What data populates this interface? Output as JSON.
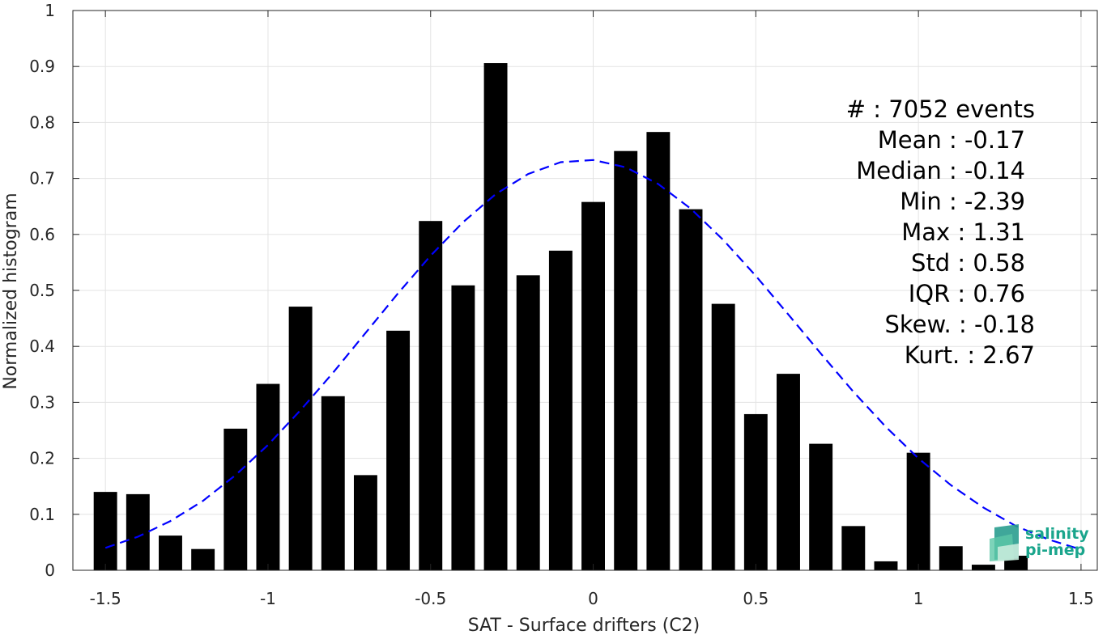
{
  "chart_data": {
    "type": "bar",
    "xlabel": "SAT - Surface drifters (C2)",
    "ylabel": "Normalized histogram",
    "xlim": [
      -1.6,
      1.55
    ],
    "ylim": [
      0,
      1
    ],
    "grid": true,
    "x_ticks": [
      "-1.5",
      "-1",
      "-0.5",
      "0",
      "0.5",
      "1",
      "1.5"
    ],
    "y_ticks": [
      "0",
      "0.1",
      "0.2",
      "0.3",
      "0.4",
      "0.5",
      "0.6",
      "0.7",
      "0.8",
      "0.9",
      "1"
    ],
    "bar_color": "#000000",
    "bin_width": 0.1,
    "x": [
      -1.5,
      -1.4,
      -1.3,
      -1.2,
      -1.1,
      -1.0,
      -0.9,
      -0.8,
      -0.7,
      -0.6,
      -0.5,
      -0.4,
      -0.3,
      -0.2,
      -0.1,
      0.0,
      0.1,
      0.2,
      0.3,
      0.4,
      0.5,
      0.6,
      0.7,
      0.8,
      0.9,
      1.0,
      1.1,
      1.2,
      1.3
    ],
    "values": [
      0.14,
      0.136,
      0.062,
      0.038,
      0.253,
      0.333,
      0.471,
      0.311,
      0.17,
      0.428,
      0.624,
      0.509,
      0.906,
      0.527,
      0.571,
      0.658,
      0.749,
      0.783,
      0.645,
      0.476,
      0.279,
      0.351,
      0.226,
      0.079,
      0.016,
      0.21,
      0.043,
      0.01,
      0.026
    ],
    "fit": {
      "type": "normal",
      "line_style": "dashed",
      "color": "#0000ff",
      "x": [
        -1.5,
        -1.4,
        -1.3,
        -1.2,
        -1.1,
        -1.0,
        -0.9,
        -0.8,
        -0.7,
        -0.6,
        -0.5,
        -0.4,
        -0.3,
        -0.2,
        -0.1,
        0.0,
        0.1,
        0.2,
        0.3,
        0.4,
        0.5,
        0.6,
        0.7,
        0.8,
        0.9,
        1.0,
        1.1,
        1.2,
        1.3,
        1.4,
        1.5
      ],
      "y": [
        0.04,
        0.06,
        0.088,
        0.124,
        0.17,
        0.224,
        0.286,
        0.353,
        0.424,
        0.495,
        0.562,
        0.622,
        0.672,
        0.708,
        0.729,
        0.733,
        0.72,
        0.69,
        0.646,
        0.59,
        0.526,
        0.457,
        0.387,
        0.319,
        0.256,
        0.2,
        0.152,
        0.112,
        0.079,
        0.055,
        0.037
      ]
    },
    "stats": [
      {
        "label": "#  : 7052 events",
        "indent": 0
      },
      {
        "label": "Mean : -0.17",
        "indent": 1
      },
      {
        "label": "Median : -0.14",
        "indent": 1
      },
      {
        "label": "Min : -2.39",
        "indent": 1
      },
      {
        "label": "Max : 1.31",
        "indent": 1
      },
      {
        "label": "Std : 0.58",
        "indent": 1
      },
      {
        "label": "IQR : 0.76",
        "indent": 1
      },
      {
        "label": "Skew. : -0.18",
        "indent": 0
      },
      {
        "label": "Kurt. : 2.67",
        "indent": 0
      }
    ]
  },
  "logo": {
    "line1": "salinity",
    "line2": "pi-mep",
    "color": "#1aa58c"
  }
}
